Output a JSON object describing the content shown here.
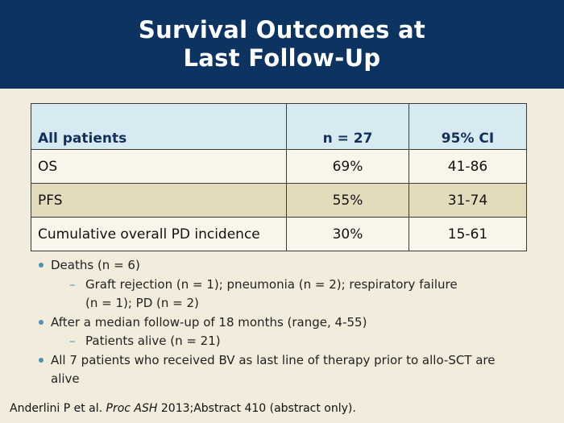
{
  "slide": {
    "title_line1": "Survival Outcomes at",
    "title_line2": "Last Follow-Up"
  },
  "table": {
    "headers": [
      "All patients",
      "n = 27",
      "95% CI"
    ],
    "rows": [
      [
        "OS",
        "69%",
        "41-86"
      ],
      [
        "PFS",
        "55%",
        "31-74"
      ],
      [
        "Cumulative overall PD incidence",
        "30%",
        "15-61"
      ]
    ]
  },
  "bullets": {
    "b1": "Deaths (n = 6)",
    "b1_sub1_line1": "Graft rejection (n = 1); pneumonia (n = 2); respiratory failure",
    "b1_sub1_line2": "(n = 1); PD (n = 2)",
    "b2": "After a median follow-up of 18 months (range, 4-55)",
    "b2_sub1": "Patients alive (n = 21)",
    "b3_line1": "All 7 patients who received BV as last line of therapy prior to allo-SCT are",
    "b3_line2": "alive",
    "dash": "–"
  },
  "citation": {
    "authors": "Anderlini P et al.",
    "journal": "Proc ASH",
    "rest": "2013;Abstract 410 (abstract only)."
  },
  "colors": {
    "header_bg": "#0d3460",
    "page_bg": "#f1ecdb",
    "table_header_bg": "#d8eaf1",
    "table_shaded_row": "#e4dbbd",
    "bullet_accent": "#4a94b4"
  }
}
